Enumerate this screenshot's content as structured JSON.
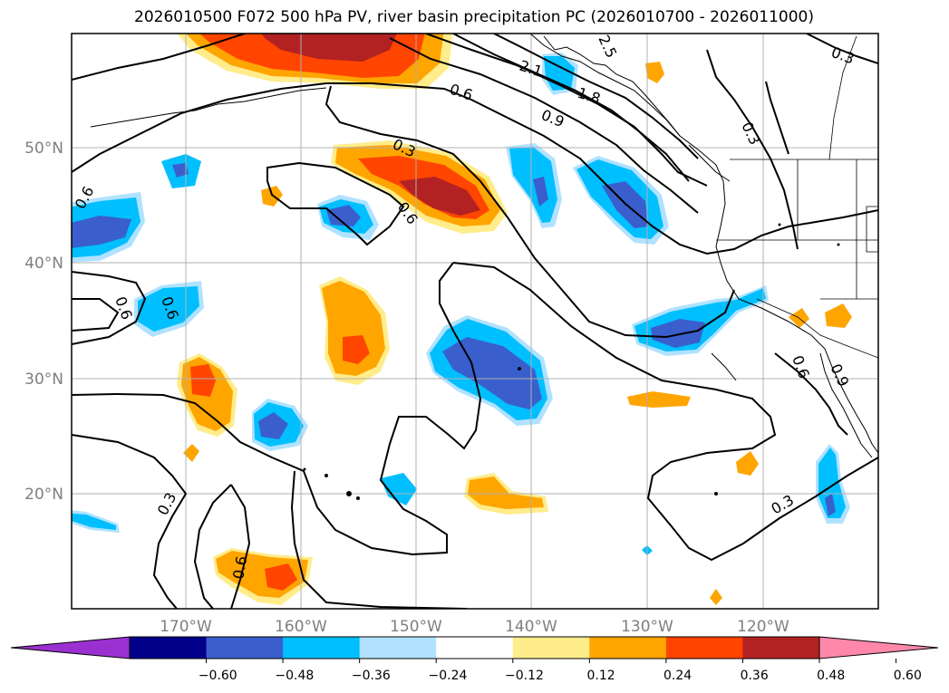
{
  "title": "2026010500 F072 500 hPa PV, river basin precipitation PC (2026010700 - 2026011000)",
  "latitude_labels": [
    "50°N",
    "40°N",
    "30°N",
    "20°N"
  ],
  "longitude_labels": [
    "170°W",
    "160°W",
    "150°W",
    "140°W",
    "130°W",
    "120°W"
  ],
  "contour_labels": [
    "2.1",
    "1.8",
    "0.9",
    "0.6",
    "0.3",
    "0.6",
    "0.3",
    "0.6",
    "0.6",
    "0.6",
    "0.3",
    "0.6",
    "0.3",
    "0.3",
    "0.6",
    "0.9",
    "2.5"
  ],
  "colorbar": {
    "ticks": [
      "−0.60",
      "−0.48",
      "−0.36",
      "−0.24",
      "−0.12",
      "0.12",
      "0.24",
      "0.36",
      "0.48",
      "0.60"
    ],
    "colors": [
      "#9b30d0",
      "#00008b",
      "#3a5fcd",
      "#00bfff",
      "#b0e2ff",
      "#ffffff",
      "#ffec8b",
      "#ffa500",
      "#ff4500",
      "#b22222",
      "#ff88aa"
    ]
  },
  "colors": {
    "coast": "#000000",
    "grid": "#b0b0b0",
    "contour": "#000000"
  }
}
